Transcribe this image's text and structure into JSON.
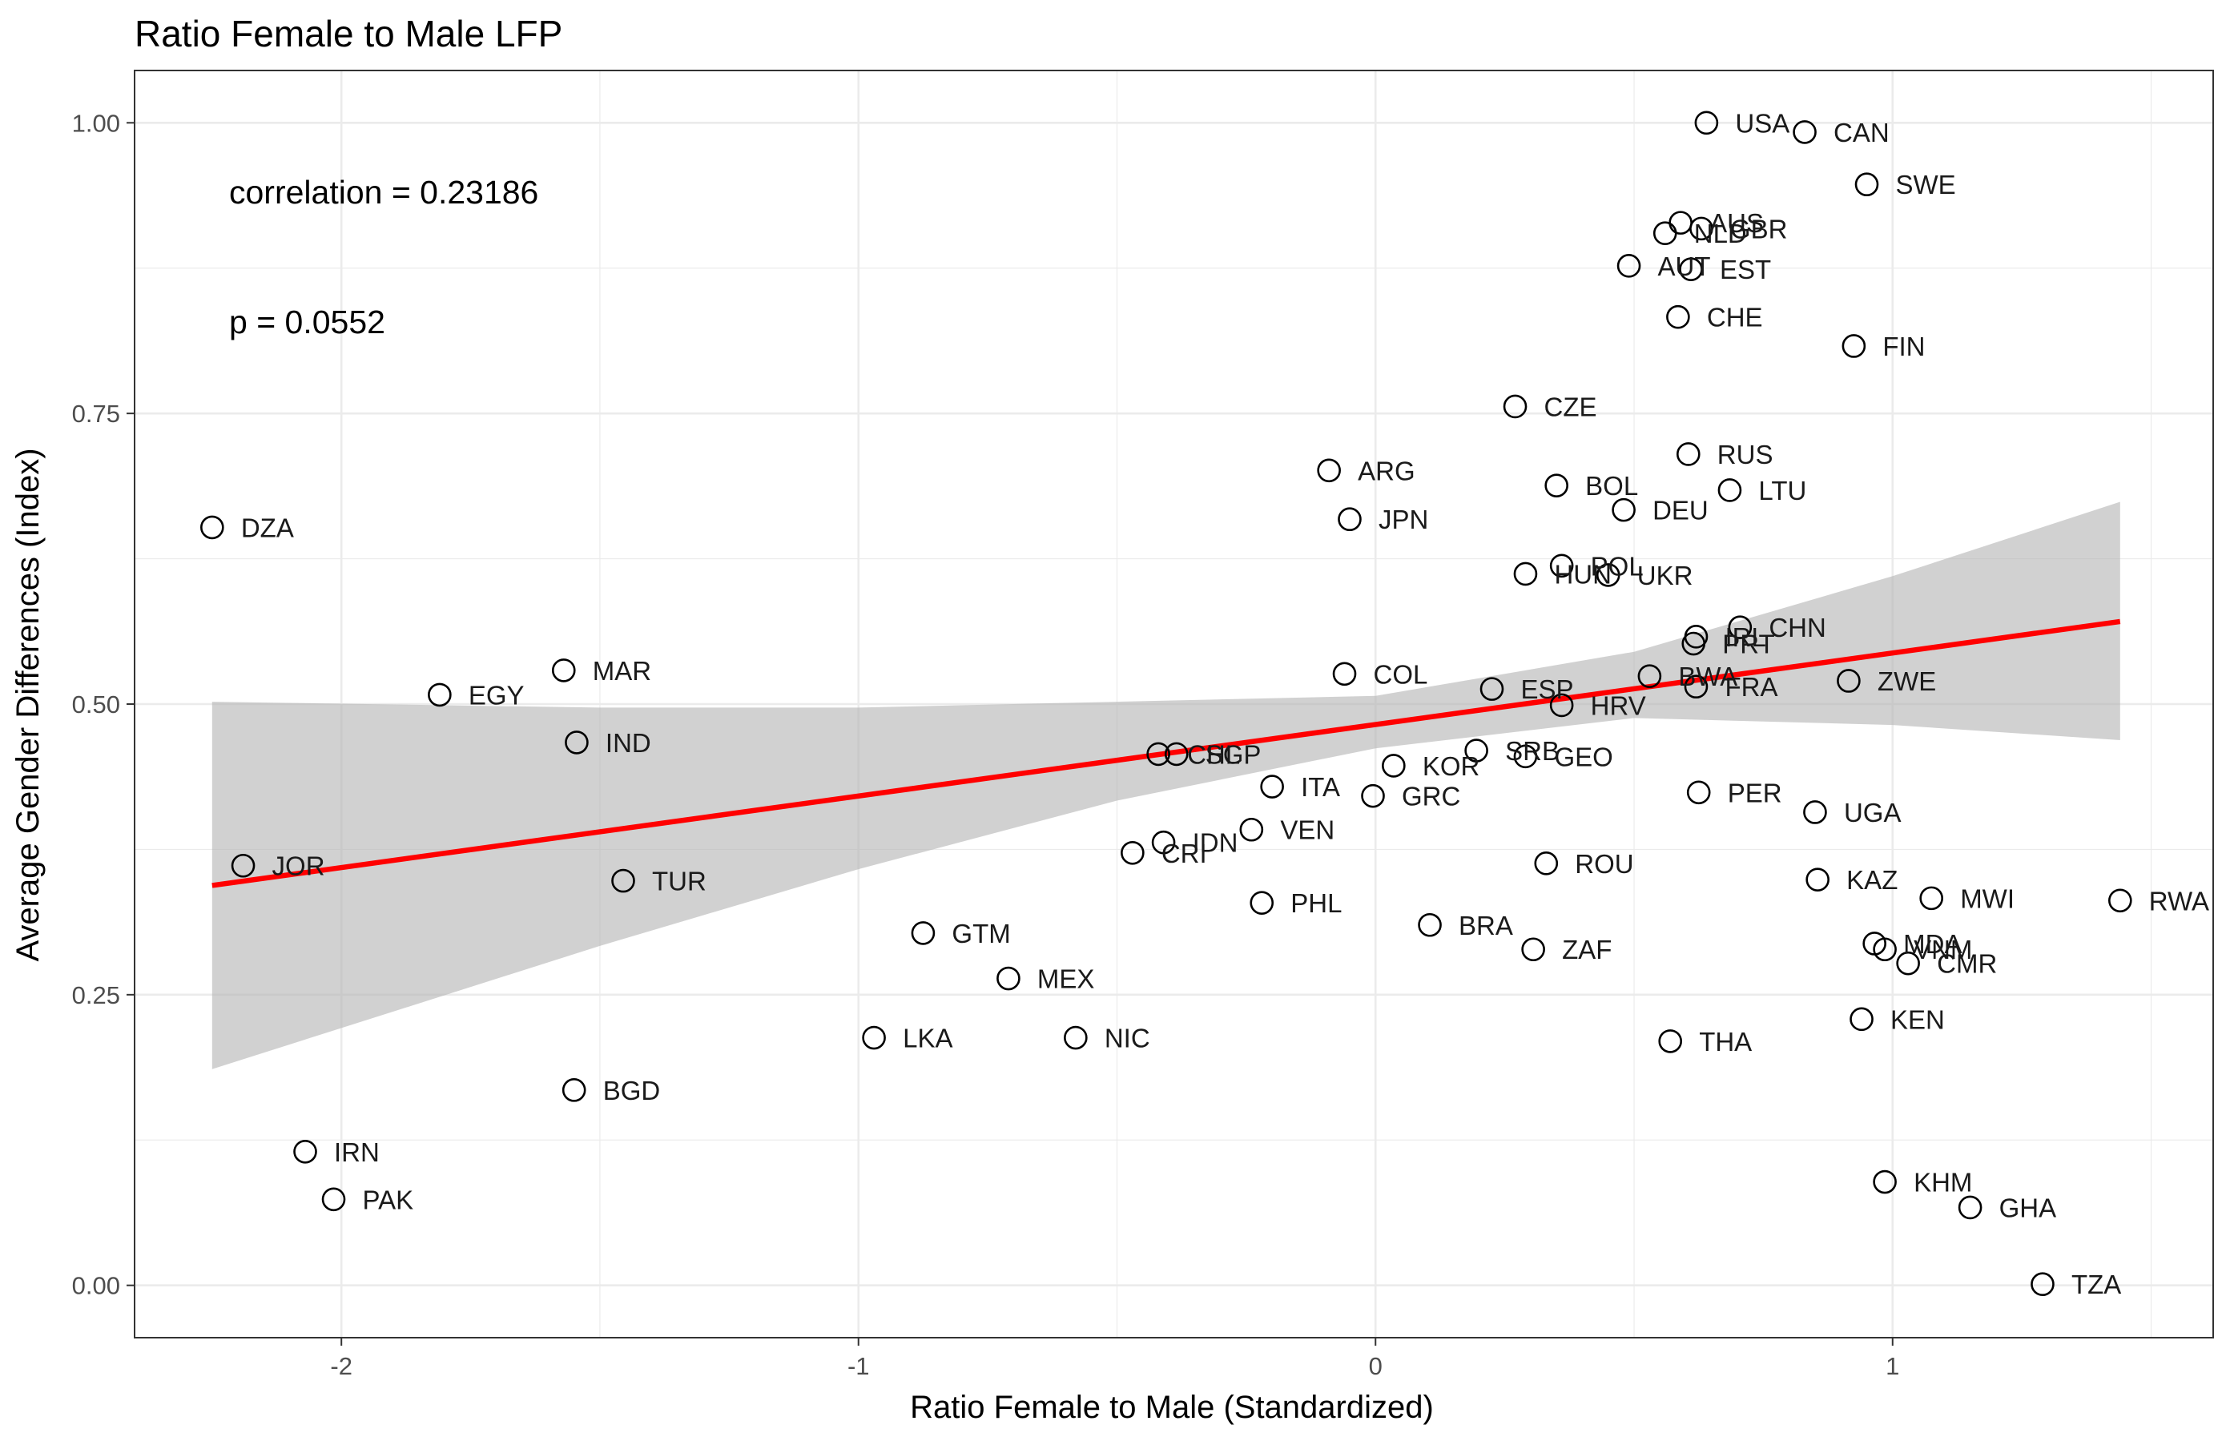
{
  "chart_data": {
    "type": "scatter",
    "title": "Ratio Female to Male LFP",
    "xlabel": "Ratio Female to Male (Standardized)",
    "ylabel": "Average Gender Differences (Index)",
    "xlim": [
      -2.4,
      1.62
    ],
    "ylim": [
      -0.045,
      1.045
    ],
    "x_ticks": [
      -2,
      -1,
      0,
      1
    ],
    "x_tick_labels": [
      "-2",
      "-1",
      "0",
      "1"
    ],
    "y_ticks": [
      0.0,
      0.25,
      0.5,
      0.75,
      1.0
    ],
    "y_tick_labels": [
      "0.00",
      "0.25",
      "0.50",
      "0.75",
      "1.00"
    ],
    "grid": true,
    "annotations": [
      "correlation = 0.23186",
      "p = 0.0552"
    ],
    "colors": {
      "regression_line": "#ff0000",
      "confidence_band": "#b3b3b3",
      "points_stroke": "#000000",
      "panel_border": "#333333",
      "grid": "#ebebeb"
    },
    "regression": {
      "x_range": [
        -2.25,
        1.44
      ],
      "y_start": 0.344,
      "y_end": 0.571
    },
    "confidence_band": {
      "x": [
        -2.25,
        -1.5,
        -1.0,
        -0.5,
        0.0,
        0.5,
        1.0,
        1.44
      ],
      "lower": [
        0.186,
        0.292,
        0.358,
        0.417,
        0.462,
        0.488,
        0.482,
        0.469
      ],
      "upper": [
        0.502,
        0.497,
        0.497,
        0.502,
        0.507,
        0.545,
        0.61,
        0.674
      ]
    },
    "points": [
      {
        "label": "USA",
        "x": 0.64,
        "y": 1.0
      },
      {
        "label": "CAN",
        "x": 0.83,
        "y": 0.992
      },
      {
        "label": "SWE",
        "x": 0.95,
        "y": 0.947
      },
      {
        "label": "AUS",
        "x": 0.59,
        "y": 0.914
      },
      {
        "label": "GBR",
        "x": 0.63,
        "y": 0.909
      },
      {
        "label": "NLD",
        "x": 0.56,
        "y": 0.905
      },
      {
        "label": "AUT",
        "x": 0.49,
        "y": 0.877
      },
      {
        "label": "EST",
        "x": 0.61,
        "y": 0.874
      },
      {
        "label": "CHE",
        "x": 0.585,
        "y": 0.833
      },
      {
        "label": "FIN",
        "x": 0.925,
        "y": 0.808
      },
      {
        "label": "CZE",
        "x": 0.27,
        "y": 0.756
      },
      {
        "label": "RUS",
        "x": 0.605,
        "y": 0.715
      },
      {
        "label": "ARG",
        "x": -0.09,
        "y": 0.701
      },
      {
        "label": "BOL",
        "x": 0.35,
        "y": 0.688
      },
      {
        "label": "LTU",
        "x": 0.685,
        "y": 0.684
      },
      {
        "label": "DEU",
        "x": 0.48,
        "y": 0.667
      },
      {
        "label": "JPN",
        "x": -0.05,
        "y": 0.659
      },
      {
        "label": "DZA",
        "x": -2.25,
        "y": 0.652
      },
      {
        "label": "POL",
        "x": 0.36,
        "y": 0.619
      },
      {
        "label": "HUN",
        "x": 0.29,
        "y": 0.612
      },
      {
        "label": "UKR",
        "x": 0.45,
        "y": 0.611
      },
      {
        "label": "CHN",
        "x": 0.705,
        "y": 0.566
      },
      {
        "label": "IRL",
        "x": 0.62,
        "y": 0.558
      },
      {
        "label": "PRT",
        "x": 0.615,
        "y": 0.552
      },
      {
        "label": "MAR",
        "x": -1.57,
        "y": 0.529
      },
      {
        "label": "COL",
        "x": -0.06,
        "y": 0.526
      },
      {
        "label": "BWA",
        "x": 0.53,
        "y": 0.524
      },
      {
        "label": "ZWE",
        "x": 0.915,
        "y": 0.52
      },
      {
        "label": "FRA",
        "x": 0.62,
        "y": 0.515
      },
      {
        "label": "ESP",
        "x": 0.225,
        "y": 0.513
      },
      {
        "label": "EGY",
        "x": -1.81,
        "y": 0.508
      },
      {
        "label": "HRV",
        "x": 0.36,
        "y": 0.499
      },
      {
        "label": "IND",
        "x": -1.545,
        "y": 0.467
      },
      {
        "label": "SRB",
        "x": 0.195,
        "y": 0.46
      },
      {
        "label": "CHL",
        "x": -0.42,
        "y": 0.457
      },
      {
        "label": "SGP",
        "x": -0.385,
        "y": 0.457
      },
      {
        "label": "GEO",
        "x": 0.29,
        "y": 0.455
      },
      {
        "label": "KOR",
        "x": 0.035,
        "y": 0.447
      },
      {
        "label": "ITA",
        "x": -0.2,
        "y": 0.429
      },
      {
        "label": "PER",
        "x": 0.625,
        "y": 0.424
      },
      {
        "label": "GRC",
        "x": -0.005,
        "y": 0.421
      },
      {
        "label": "UGA",
        "x": 0.85,
        "y": 0.407
      },
      {
        "label": "VEN",
        "x": -0.24,
        "y": 0.392
      },
      {
        "label": "IDN",
        "x": -0.41,
        "y": 0.381
      },
      {
        "label": "CRI",
        "x": -0.47,
        "y": 0.372
      },
      {
        "label": "ROU",
        "x": 0.33,
        "y": 0.363
      },
      {
        "label": "JOR",
        "x": -2.19,
        "y": 0.361
      },
      {
        "label": "TUR",
        "x": -1.455,
        "y": 0.348
      },
      {
        "label": "KAZ",
        "x": 0.855,
        "y": 0.349
      },
      {
        "label": "MWI",
        "x": 1.075,
        "y": 0.333
      },
      {
        "label": "RWA",
        "x": 1.44,
        "y": 0.331
      },
      {
        "label": "PHL",
        "x": -0.22,
        "y": 0.329
      },
      {
        "label": "BRA",
        "x": 0.105,
        "y": 0.31
      },
      {
        "label": "GTM",
        "x": -0.875,
        "y": 0.303
      },
      {
        "label": "MDA",
        "x": 0.965,
        "y": 0.294
      },
      {
        "label": "VNM",
        "x": 0.985,
        "y": 0.289
      },
      {
        "label": "ZAF",
        "x": 0.305,
        "y": 0.289
      },
      {
        "label": "CMR",
        "x": 1.03,
        "y": 0.277
      },
      {
        "label": "MEX",
        "x": -0.71,
        "y": 0.264
      },
      {
        "label": "KEN",
        "x": 0.94,
        "y": 0.229
      },
      {
        "label": "LKA",
        "x": -0.97,
        "y": 0.213
      },
      {
        "label": "NIC",
        "x": -0.58,
        "y": 0.213
      },
      {
        "label": "THA",
        "x": 0.57,
        "y": 0.21
      },
      {
        "label": "BGD",
        "x": -1.55,
        "y": 0.168
      },
      {
        "label": "IRN",
        "x": -2.07,
        "y": 0.115
      },
      {
        "label": "KHM",
        "x": 0.985,
        "y": 0.089
      },
      {
        "label": "PAK",
        "x": -2.015,
        "y": 0.074
      },
      {
        "label": "GHA",
        "x": 1.15,
        "y": 0.067
      },
      {
        "label": "TZA",
        "x": 1.29,
        "y": 0.001
      }
    ]
  }
}
